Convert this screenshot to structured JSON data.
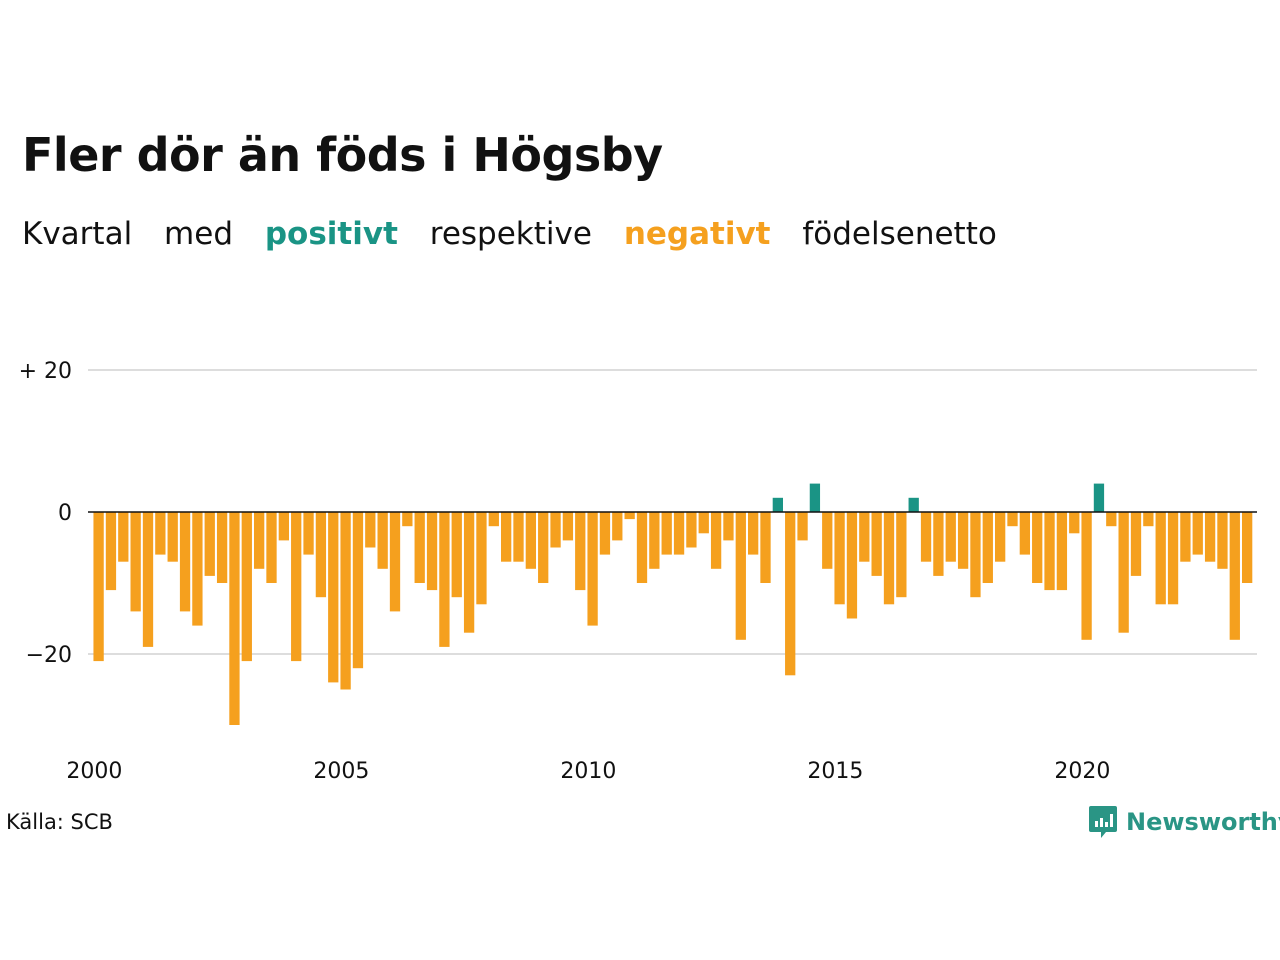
{
  "title": "Fler dör än föds i Högsby",
  "subtitle": {
    "w1": "Kvartal",
    "w2": "med",
    "positive": "positivt",
    "w3": "respektive",
    "negative": "negativt",
    "w4": "födelsenetto"
  },
  "source": "Källa: SCB",
  "brand": {
    "name": "Newsworthy",
    "icon": "newsworthy-chart-bubble-icon"
  },
  "colors": {
    "positive": "#1a9485",
    "negative": "#f5a01e",
    "grid": "#dddddd",
    "zero_line": "#111111"
  },
  "chart_data": {
    "type": "bar",
    "title": "Fler dör än föds i Högsby",
    "xlabel": "",
    "ylabel": "",
    "ylim": [
      -30,
      20
    ],
    "grid": true,
    "x_start": 2000,
    "periods_per_year": 4,
    "x_ticks": [
      {
        "value": 2000,
        "label": "2000"
      },
      {
        "value": 2005,
        "label": "2005"
      },
      {
        "value": 2010,
        "label": "2010"
      },
      {
        "value": 2015,
        "label": "2015"
      },
      {
        "value": 2020,
        "label": "2020"
      }
    ],
    "y_ticks": [
      {
        "value": 20,
        "label": "+ 20"
      },
      {
        "value": 0,
        "label": "0"
      },
      {
        "value": -20,
        "label": "−20"
      }
    ],
    "values": [
      -21,
      -11,
      -7,
      -14,
      -19,
      -6,
      -7,
      -14,
      -16,
      -9,
      -10,
      -30,
      -21,
      -8,
      -10,
      -4,
      -21,
      -6,
      -12,
      -24,
      -25,
      -22,
      -5,
      -8,
      -14,
      -2,
      -10,
      -11,
      -19,
      -12,
      -17,
      -13,
      -2,
      -7,
      -7,
      -8,
      -10,
      -5,
      -4,
      -11,
      -16,
      -6,
      -4,
      -1,
      -10,
      -8,
      -6,
      -6,
      -5,
      -3,
      -8,
      -4,
      -18,
      -6,
      -10,
      2,
      -23,
      -4,
      4,
      -8,
      -13,
      -15,
      -7,
      -9,
      -13,
      -12,
      2,
      -7,
      -9,
      -7,
      -8,
      -12,
      -10,
      -7,
      -2,
      -6,
      -10,
      -11,
      -11,
      -3,
      -18,
      4,
      -2,
      -17,
      -9,
      -2,
      -13,
      -13,
      -7,
      -6,
      -7,
      -8,
      -18,
      -10
    ]
  }
}
